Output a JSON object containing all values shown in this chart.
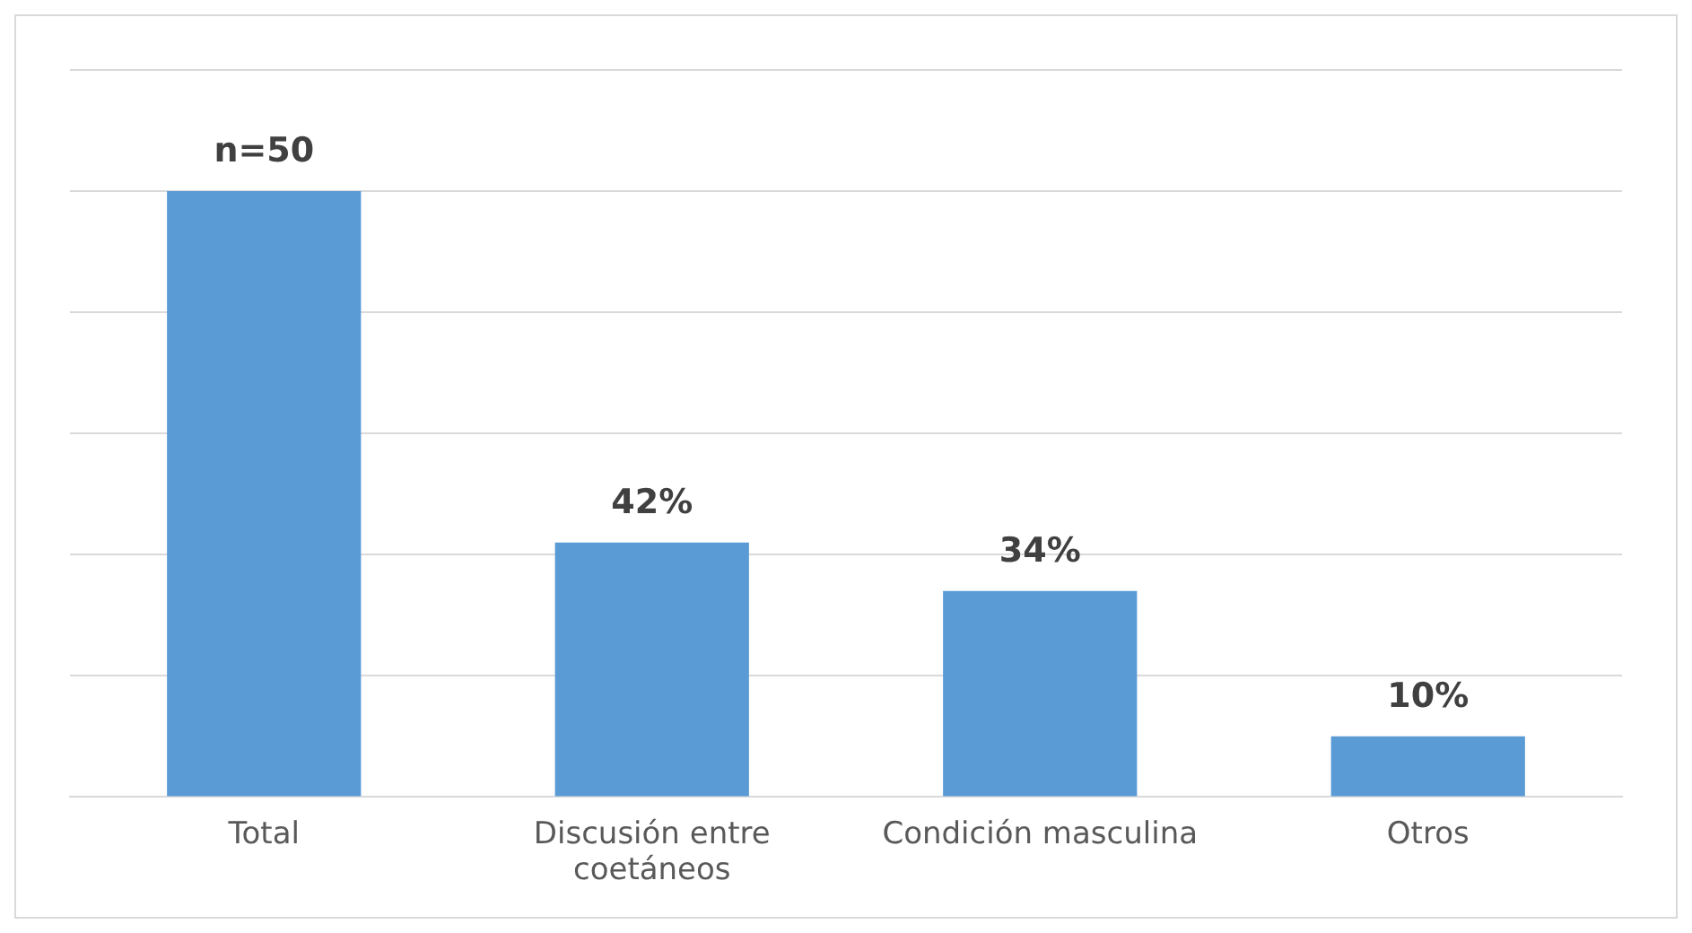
{
  "chart_data": {
    "type": "bar",
    "categories": [
      "Total",
      "Discusión entre coetáneos",
      "Condición masculina",
      "Otros"
    ],
    "values": [
      100,
      42,
      34,
      10
    ],
    "value_labels": [
      null,
      "42%",
      "34%",
      "10%"
    ],
    "annotations": [
      {
        "text": "n=50",
        "x": "Total",
        "y": 100
      }
    ],
    "ylim": [
      0,
      120
    ],
    "yticks": [
      {
        "value": 0,
        "label": null
      },
      {
        "value": 20,
        "label": null
      },
      {
        "value": 40,
        "label": null
      },
      {
        "value": 60,
        "label": null
      },
      {
        "value": 80,
        "label": null
      },
      {
        "value": 100,
        "label": null
      },
      {
        "value": 120,
        "label": null
      }
    ],
    "tick_labels": "x",
    "color": "#5b9bd5",
    "grid": "y",
    "legend": false
  }
}
